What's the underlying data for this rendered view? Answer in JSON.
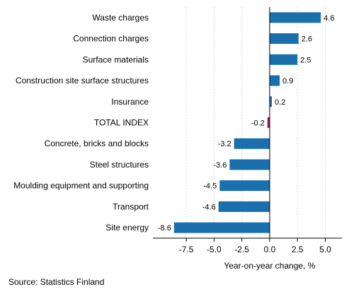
{
  "chart_data": {
    "type": "bar",
    "orientation": "horizontal",
    "categories": [
      "Waste charges",
      "Connection charges",
      "Surface materials",
      "Construction site surface structures",
      "Insurance",
      "TOTAL INDEX",
      "Concrete, bricks and blocks",
      "Steel structures",
      "Moulding equipment and supporting",
      "Transport",
      "Site energy"
    ],
    "values": [
      4.6,
      2.6,
      2.5,
      0.9,
      0.2,
      -0.2,
      -3.2,
      -3.6,
      -4.5,
      -4.6,
      -8.6
    ],
    "value_labels": [
      "4.6",
      "2.6",
      "2.5",
      "0.9",
      "0.2",
      "-0.2",
      "-3.2",
      "-3.6",
      "-4.5",
      "-4.6",
      "-8.6"
    ],
    "highlight_category": "TOTAL INDEX",
    "xlabel": "Year-on-year change, %",
    "ylabel": "",
    "xlim": [
      -10.5,
      6.5
    ],
    "xticks": [
      -7.5,
      -5.0,
      -2.5,
      0.0,
      2.5,
      5.0
    ],
    "xtick_labels": [
      "-7.5",
      "-5.0",
      "-2.5",
      "0.0",
      "2.5",
      "5.0"
    ],
    "grid": true,
    "colors": {
      "bar": "#1a6fad",
      "highlight": "#9c1b5a",
      "grid": "#d9d9d9",
      "axis": "#000000"
    }
  },
  "source": "Source: Statistics Finland"
}
